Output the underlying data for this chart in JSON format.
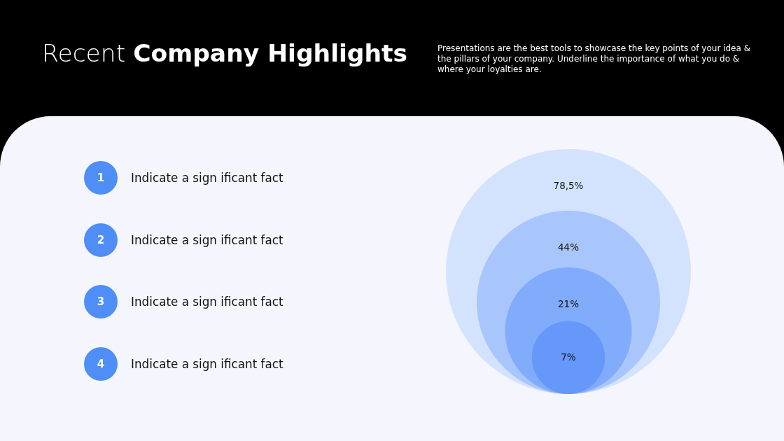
{
  "chart_data": {
    "type": "other",
    "title": "Recent Company Highlights",
    "subtitle": "Presentations are the best tools to showcase the key points of your idea & the pillars of your company. Underline the importance of what you do & where your loyalties are.",
    "values": [
      78.5,
      44,
      21,
      7
    ],
    "value_labels": [
      "78,5%",
      "44%",
      "21%",
      "7%"
    ],
    "colors": [
      "#d4e3fd",
      "#a9c6fc",
      "#81acfb",
      "#6698fa"
    ],
    "annotations": [
      "1 Indicate a sign ificant fact",
      "2 Indicate a sign ificant fact",
      "3 Indicate a sign ificant fact",
      "4 Indicate a sign ificant fact"
    ]
  }
}
